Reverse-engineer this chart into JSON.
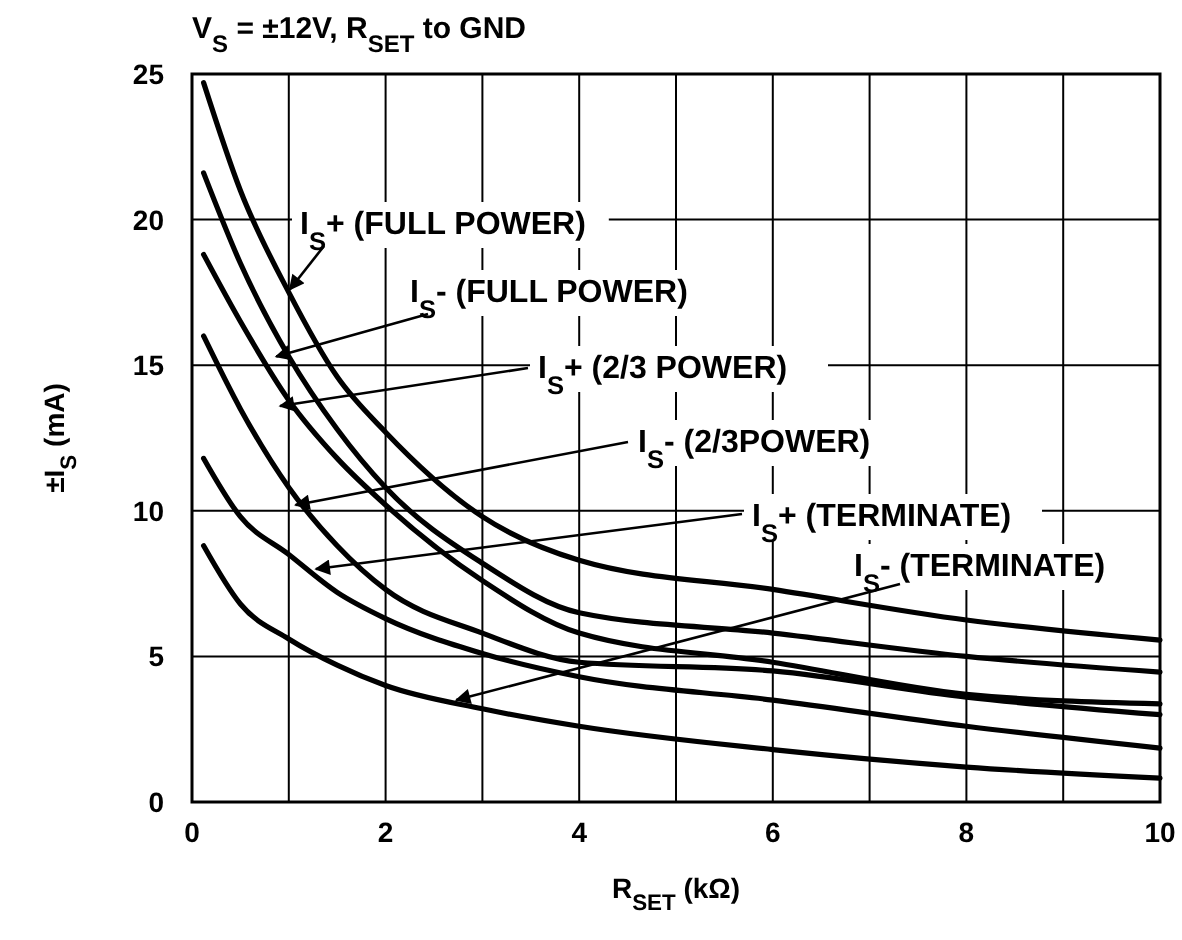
{
  "chart_data": {
    "type": "line",
    "title": "V$_{S}$ = ±12V, R$_{SET}$ to GND",
    "xlabel": "R$_{SET}$ (kΩ)",
    "ylabel": "±I$_{S}$ (mA)",
    "x": [
      0.12,
      0.5,
      1,
      1.5,
      2,
      3,
      4,
      6,
      8,
      10
    ],
    "series": [
      {
        "color": "#000000",
        "values": [
          24.7,
          21,
          17.5,
          14.6,
          12.7,
          9.8,
          8.3,
          7.3,
          6.25,
          5.56
        ]
      },
      {
        "color": "#000000",
        "values": [
          21.6,
          18.5,
          15.3,
          12.8,
          10.8,
          8.2,
          6.5,
          5.8,
          5.0,
          4.46
        ]
      },
      {
        "color": "#000000",
        "values": [
          18.8,
          16.5,
          13.8,
          11.8,
          10.2,
          7.6,
          5.8,
          4.8,
          3.7,
          3.37
        ]
      },
      {
        "color": "#000000",
        "values": [
          16,
          13.5,
          10.8,
          8.8,
          7.3,
          5.8,
          4.8,
          4.5,
          3.6,
          3.0
        ]
      },
      {
        "color": "#000000",
        "values": [
          11.8,
          9.8,
          8.5,
          7.2,
          6.3,
          5.1,
          4.3,
          3.5,
          2.6,
          1.85
        ]
      },
      {
        "color": "#000000",
        "values": [
          8.8,
          6.8,
          5.6,
          4.7,
          4.0,
          3.2,
          2.6,
          1.8,
          1.2,
          0.82
        ]
      }
    ],
    "xlim": [
      0,
      10
    ],
    "ylim": [
      0,
      25
    ],
    "xticks": [
      0,
      {
        "value": 1,
        "label": null
      },
      2,
      {
        "value": 3,
        "label": null
      },
      4,
      {
        "value": 5,
        "label": null
      },
      6,
      {
        "value": 7,
        "label": null
      },
      8,
      {
        "value": 9,
        "label": null
      },
      10
    ],
    "yticks": [
      0,
      5,
      10,
      15,
      20,
      25
    ],
    "grid": true,
    "marker": "none",
    "line_style": "solid",
    "annotations": [
      {
        "text": "I$_{S}$+ (FULL POWER)",
        "x": 1.01,
        "y": 17.6
      },
      {
        "text": "I$_{S}$- (FULL POWER)",
        "x": 0.87,
        "y": 15.3
      },
      {
        "text": "I$_{S}$+ (2/3 POWER)",
        "x": 0.91,
        "y": 13.6
      },
      {
        "text": "I$_{S}$- (2/3POWER)",
        "x": 1.07,
        "y": 10.2
      },
      {
        "text": "I$_{S}$+ (TERMINATE)",
        "x": 1.28,
        "y": 8.0
      },
      {
        "text": "I$_{S}$- (TERMINATE)",
        "x": 2.73,
        "y": 3.5
      }
    ]
  }
}
